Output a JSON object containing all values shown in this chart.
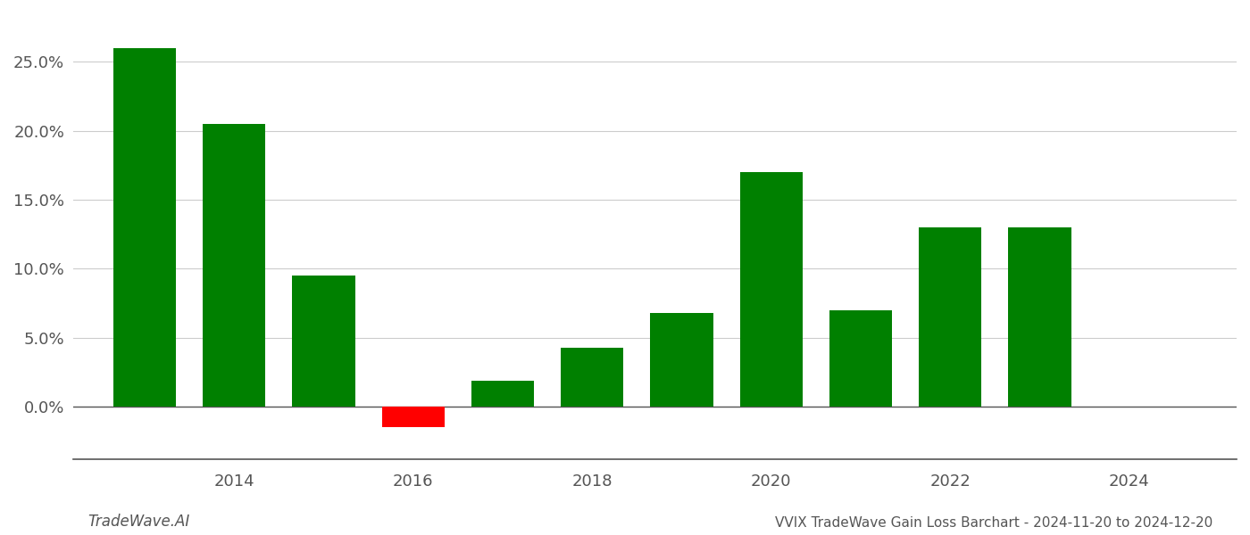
{
  "years": [
    2013,
    2014,
    2015,
    2016,
    2017,
    2018,
    2019,
    2020,
    2021,
    2022,
    2023
  ],
  "values": [
    0.26,
    0.205,
    0.095,
    -0.015,
    0.019,
    0.043,
    0.068,
    0.17,
    0.07,
    0.13,
    0.13
  ],
  "bar_colors": [
    "#008000",
    "#008000",
    "#008000",
    "#ff0000",
    "#008000",
    "#008000",
    "#008000",
    "#008000",
    "#008000",
    "#008000",
    "#008000"
  ],
  "title": "VVIX TradeWave Gain Loss Barchart - 2024-11-20 to 2024-12-20",
  "footer_left": "TradeWave.AI",
  "ylim": [
    -0.038,
    0.285
  ],
  "ytick_values": [
    0.0,
    0.05,
    0.1,
    0.15,
    0.2,
    0.25
  ],
  "ytick_labels": [
    "0.0%",
    "5.0%",
    "10.0%",
    "15.0%",
    "20.0%",
    "25.0%"
  ],
  "xtick_years": [
    2014,
    2016,
    2018,
    2020,
    2022,
    2024
  ],
  "xlim": [
    2012.2,
    2025.2
  ],
  "background_color": "#ffffff",
  "grid_color": "#cccccc",
  "bar_width": 0.7
}
